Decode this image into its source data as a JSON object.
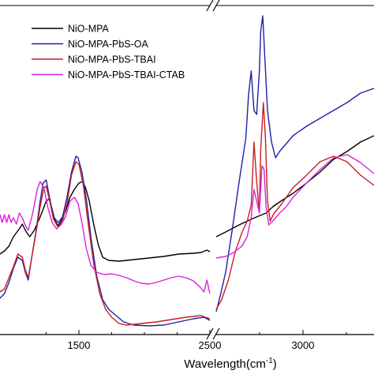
{
  "chart_data": {
    "type": "line",
    "xlabel": "Wavelength(cm",
    "xlabel_superscript": "-1",
    "xlabel_suffix": ")",
    "axis_break": "broken x-axis between 1500-region and 2500-region",
    "grid": false,
    "legend_position": "top-left",
    "x_ticks": [
      {
        "label": "1500",
        "value": 1500
      },
      {
        "label": "2500",
        "value": 2500
      },
      {
        "label": "3000",
        "value": 3000
      }
    ],
    "series": [
      {
        "name": "NiO-MPA",
        "color": "#000000",
        "left": [
          [
            1050,
            322
          ],
          [
            1080,
            318
          ],
          [
            1110,
            312
          ],
          [
            1140,
            300
          ],
          [
            1180,
            290
          ],
          [
            1200,
            284
          ],
          [
            1220,
            292
          ],
          [
            1250,
            300
          ],
          [
            1280,
            292
          ],
          [
            1320,
            275
          ],
          [
            1360,
            255
          ],
          [
            1380,
            252
          ],
          [
            1400,
            265
          ],
          [
            1420,
            280
          ],
          [
            1440,
            286
          ],
          [
            1460,
            280
          ],
          [
            1490,
            268
          ],
          [
            1520,
            250
          ],
          [
            1550,
            240
          ],
          [
            1580,
            232
          ],
          [
            1605,
            230
          ],
          [
            1625,
            238
          ],
          [
            1650,
            255
          ],
          [
            1680,
            285
          ],
          [
            1710,
            310
          ],
          [
            1740,
            326
          ],
          [
            1780,
            330
          ],
          [
            1850,
            331
          ],
          [
            1950,
            329
          ],
          [
            2050,
            327
          ],
          [
            2150,
            325
          ],
          [
            2250,
            322
          ],
          [
            2350,
            321
          ],
          [
            2400,
            320
          ],
          [
            2440,
            317
          ],
          [
            2460,
            319
          ]
        ],
        "right": [
          [
            2530,
            300
          ],
          [
            2600,
            294
          ],
          [
            2700,
            285
          ],
          [
            2800,
            277
          ],
          [
            2900,
            270
          ],
          [
            2950,
            262
          ],
          [
            3000,
            256
          ],
          [
            3100,
            245
          ],
          [
            3200,
            232
          ],
          [
            3300,
            218
          ],
          [
            3400,
            202
          ],
          [
            3500,
            192
          ],
          [
            3600,
            180
          ],
          [
            3700,
            172
          ]
        ]
      },
      {
        "name": "NiO-MPA-PbS-OA",
        "color": "#1f1fa8",
        "left": [
          [
            1050,
            378
          ],
          [
            1080,
            372
          ],
          [
            1110,
            358
          ],
          [
            1140,
            340
          ],
          [
            1170,
            326
          ],
          [
            1200,
            330
          ],
          [
            1220,
            345
          ],
          [
            1240,
            355
          ],
          [
            1260,
            330
          ],
          [
            1290,
            295
          ],
          [
            1320,
            255
          ],
          [
            1340,
            232
          ],
          [
            1360,
            228
          ],
          [
            1380,
            248
          ],
          [
            1410,
            275
          ],
          [
            1440,
            282
          ],
          [
            1470,
            275
          ],
          [
            1500,
            250
          ],
          [
            1530,
            218
          ],
          [
            1560,
            198
          ],
          [
            1575,
            200
          ],
          [
            1600,
            218
          ],
          [
            1630,
            252
          ],
          [
            1660,
            300
          ],
          [
            1700,
            350
          ],
          [
            1740,
            380
          ],
          [
            1780,
            392
          ],
          [
            1830,
            400
          ],
          [
            1880,
            408
          ],
          [
            1950,
            412
          ],
          [
            2050,
            413
          ],
          [
            2150,
            412
          ],
          [
            2250,
            408
          ],
          [
            2350,
            404
          ],
          [
            2420,
            402
          ],
          [
            2460,
            406
          ]
        ],
        "right": [
          [
            2530,
            395
          ],
          [
            2560,
            375
          ],
          [
            2600,
            345
          ],
          [
            2650,
            290
          ],
          [
            2700,
            230
          ],
          [
            2750,
            175
          ],
          [
            2770,
            120
          ],
          [
            2790,
            90
          ],
          [
            2810,
            140
          ],
          [
            2830,
            145
          ],
          [
            2850,
            90
          ],
          [
            2860,
            40
          ],
          [
            2875,
            20
          ],
          [
            2890,
            70
          ],
          [
            2910,
            140
          ],
          [
            2940,
            180
          ],
          [
            2970,
            200
          ],
          [
            3000,
            192
          ],
          [
            3050,
            182
          ],
          [
            3100,
            172
          ],
          [
            3200,
            160
          ],
          [
            3300,
            150
          ],
          [
            3400,
            140
          ],
          [
            3500,
            130
          ],
          [
            3600,
            118
          ],
          [
            3700,
            112
          ]
        ]
      },
      {
        "name": "NiO-MPA-PbS-TBAI",
        "color": "#c81e1e",
        "left": [
          [
            1050,
            370
          ],
          [
            1080,
            366
          ],
          [
            1110,
            352
          ],
          [
            1140,
            338
          ],
          [
            1170,
            322
          ],
          [
            1200,
            326
          ],
          [
            1220,
            342
          ],
          [
            1240,
            352
          ],
          [
            1260,
            330
          ],
          [
            1290,
            297
          ],
          [
            1320,
            262
          ],
          [
            1345,
            238
          ],
          [
            1360,
            236
          ],
          [
            1380,
            252
          ],
          [
            1410,
            278
          ],
          [
            1440,
            288
          ],
          [
            1470,
            280
          ],
          [
            1500,
            258
          ],
          [
            1530,
            222
          ],
          [
            1560,
            205
          ],
          [
            1580,
            208
          ],
          [
            1610,
            235
          ],
          [
            1640,
            280
          ],
          [
            1680,
            335
          ],
          [
            1720,
            372
          ],
          [
            1760,
            392
          ],
          [
            1800,
            402
          ],
          [
            1850,
            410
          ],
          [
            1900,
            412
          ],
          [
            2000,
            410
          ],
          [
            2100,
            408
          ],
          [
            2200,
            405
          ],
          [
            2300,
            402
          ],
          [
            2400,
            400
          ],
          [
            2460,
            404
          ]
        ],
        "right": [
          [
            2530,
            392
          ],
          [
            2570,
            380
          ],
          [
            2620,
            355
          ],
          [
            2670,
            320
          ],
          [
            2720,
            295
          ],
          [
            2760,
            280
          ],
          [
            2790,
            260
          ],
          [
            2810,
            180
          ],
          [
            2830,
            230
          ],
          [
            2850,
            270
          ],
          [
            2860,
            190
          ],
          [
            2880,
            130
          ],
          [
            2895,
            175
          ],
          [
            2910,
            255
          ],
          [
            2930,
            280
          ],
          [
            2960,
            270
          ],
          [
            3000,
            262
          ],
          [
            3100,
            238
          ],
          [
            3200,
            222
          ],
          [
            3300,
            205
          ],
          [
            3400,
            198
          ],
          [
            3500,
            205
          ],
          [
            3600,
            222
          ],
          [
            3700,
            235
          ]
        ]
      },
      {
        "name": "NiO-MPA-PbS-TBAI-CTAB",
        "color": "#d822d8",
        "left": [
          [
            1050,
            272
          ],
          [
            1065,
            282
          ],
          [
            1080,
            272
          ],
          [
            1095,
            282
          ],
          [
            1110,
            272
          ],
          [
            1125,
            282
          ],
          [
            1140,
            276
          ],
          [
            1160,
            284
          ],
          [
            1180,
            270
          ],
          [
            1200,
            276
          ],
          [
            1220,
            286
          ],
          [
            1240,
            292
          ],
          [
            1270,
            270
          ],
          [
            1300,
            240
          ],
          [
            1320,
            230
          ],
          [
            1345,
            238
          ],
          [
            1370,
            262
          ],
          [
            1400,
            282
          ],
          [
            1430,
            290
          ],
          [
            1460,
            285
          ],
          [
            1490,
            275
          ],
          [
            1520,
            255
          ],
          [
            1550,
            250
          ],
          [
            1575,
            258
          ],
          [
            1600,
            282
          ],
          [
            1630,
            315
          ],
          [
            1660,
            336
          ],
          [
            1700,
            345
          ],
          [
            1750,
            348
          ],
          [
            1800,
            347
          ],
          [
            1850,
            349
          ],
          [
            1900,
            352
          ],
          [
            1950,
            356
          ],
          [
            2000,
            359
          ],
          [
            2050,
            360
          ],
          [
            2100,
            358
          ],
          [
            2150,
            355
          ],
          [
            2200,
            352
          ],
          [
            2250,
            350
          ],
          [
            2300,
            352
          ],
          [
            2350,
            356
          ],
          [
            2400,
            365
          ],
          [
            2420,
            370
          ],
          [
            2440,
            355
          ],
          [
            2460,
            372
          ]
        ],
        "right": [
          [
            2530,
            327
          ],
          [
            2600,
            325
          ],
          [
            2660,
            320
          ],
          [
            2720,
            312
          ],
          [
            2760,
            300
          ],
          [
            2790,
            275
          ],
          [
            2810,
            240
          ],
          [
            2830,
            255
          ],
          [
            2850,
            270
          ],
          [
            2870,
            210
          ],
          [
            2885,
            215
          ],
          [
            2900,
            262
          ],
          [
            2920,
            285
          ],
          [
            2950,
            280
          ],
          [
            3000,
            270
          ],
          [
            3050,
            262
          ],
          [
            3100,
            250
          ],
          [
            3200,
            232
          ],
          [
            3300,
            215
          ],
          [
            3400,
            200
          ],
          [
            3500,
            196
          ],
          [
            3600,
            206
          ],
          [
            3700,
            220
          ]
        ]
      }
    ]
  }
}
